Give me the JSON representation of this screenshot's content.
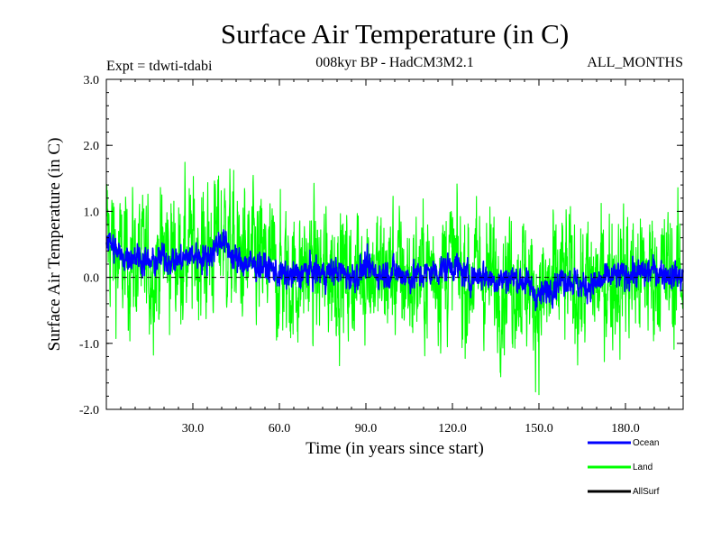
{
  "chart_data": {
    "type": "line",
    "title": "Surface Air Temperature (in C)",
    "subtitle_left": "Expt = tdwti-tdabi",
    "subtitle_center": "008kyr BP - HadCM3M2.1",
    "subtitle_right": "ALL_MONTHS",
    "xlabel": "Time (in years since start)",
    "ylabel": "Surface Air Temperature (in C)",
    "xlim": [
      0,
      200
    ],
    "ylim": [
      -2.0,
      3.0
    ],
    "x_ticks": [
      30,
      60,
      90,
      120,
      150,
      180
    ],
    "x_tick_labels": [
      "30.0",
      "60.0",
      "90.0",
      "120.0",
      "150.0",
      "180.0"
    ],
    "y_ticks": [
      -2,
      -1,
      0,
      1,
      2,
      3
    ],
    "y_tick_labels": [
      "-2.0",
      "-1.0",
      "0.0",
      "1.0",
      "2.0",
      "3.0"
    ],
    "reference_line": 0.0,
    "series": [
      {
        "name": "Ocean",
        "color": "#0000ff",
        "note": "annual-mean anchor values, year 0..200 step 5",
        "x": [
          0,
          5,
          10,
          15,
          20,
          25,
          30,
          35,
          40,
          45,
          50,
          55,
          60,
          65,
          70,
          75,
          80,
          85,
          90,
          95,
          100,
          105,
          110,
          115,
          120,
          125,
          130,
          135,
          140,
          145,
          150,
          155,
          160,
          165,
          170,
          175,
          180,
          185,
          190,
          195,
          200
        ],
        "values": [
          0.6,
          0.3,
          0.35,
          0.2,
          0.3,
          0.25,
          0.35,
          0.3,
          0.6,
          0.25,
          0.2,
          0.15,
          0.05,
          0.0,
          0.1,
          0.05,
          0.1,
          0.0,
          0.15,
          0.05,
          0.1,
          0.0,
          0.05,
          0.1,
          0.2,
          0.0,
          0.05,
          -0.05,
          0.0,
          -0.05,
          -0.3,
          -0.1,
          0.0,
          -0.15,
          -0.1,
          0.0,
          0.05,
          0.05,
          0.1,
          0.05,
          0.0
        ]
      },
      {
        "name": "Land",
        "color": "#00ff00",
        "note": "annual-mean anchor values, year 0..200 step 5",
        "x": [
          0,
          5,
          10,
          15,
          20,
          25,
          30,
          35,
          40,
          45,
          50,
          55,
          60,
          65,
          70,
          75,
          80,
          85,
          90,
          95,
          100,
          105,
          110,
          115,
          120,
          125,
          130,
          135,
          140,
          145,
          150,
          155,
          160,
          165,
          170,
          175,
          180,
          185,
          190,
          195,
          200
        ],
        "values": [
          0.7,
          0.2,
          0.3,
          0.1,
          0.4,
          0.3,
          0.4,
          0.35,
          0.7,
          0.3,
          0.25,
          0.2,
          0.05,
          -0.05,
          0.15,
          0.0,
          0.15,
          -0.05,
          0.2,
          0.0,
          0.1,
          -0.05,
          0.05,
          0.15,
          0.25,
          -0.05,
          0.1,
          -0.1,
          0.05,
          -0.05,
          -0.35,
          -0.15,
          0.0,
          -0.2,
          -0.1,
          0.0,
          0.05,
          0.0,
          0.1,
          0.05,
          0.05
        ]
      },
      {
        "name": "AllSurf",
        "color": "#000000",
        "x": [],
        "values": []
      }
    ],
    "legend": [
      {
        "label": "Ocean",
        "color": "#0000ff"
      },
      {
        "label": "Land",
        "color": "#00ff00"
      },
      {
        "label": "AllSurf",
        "color": "#000000"
      }
    ],
    "legend_position": "bottom-right"
  }
}
